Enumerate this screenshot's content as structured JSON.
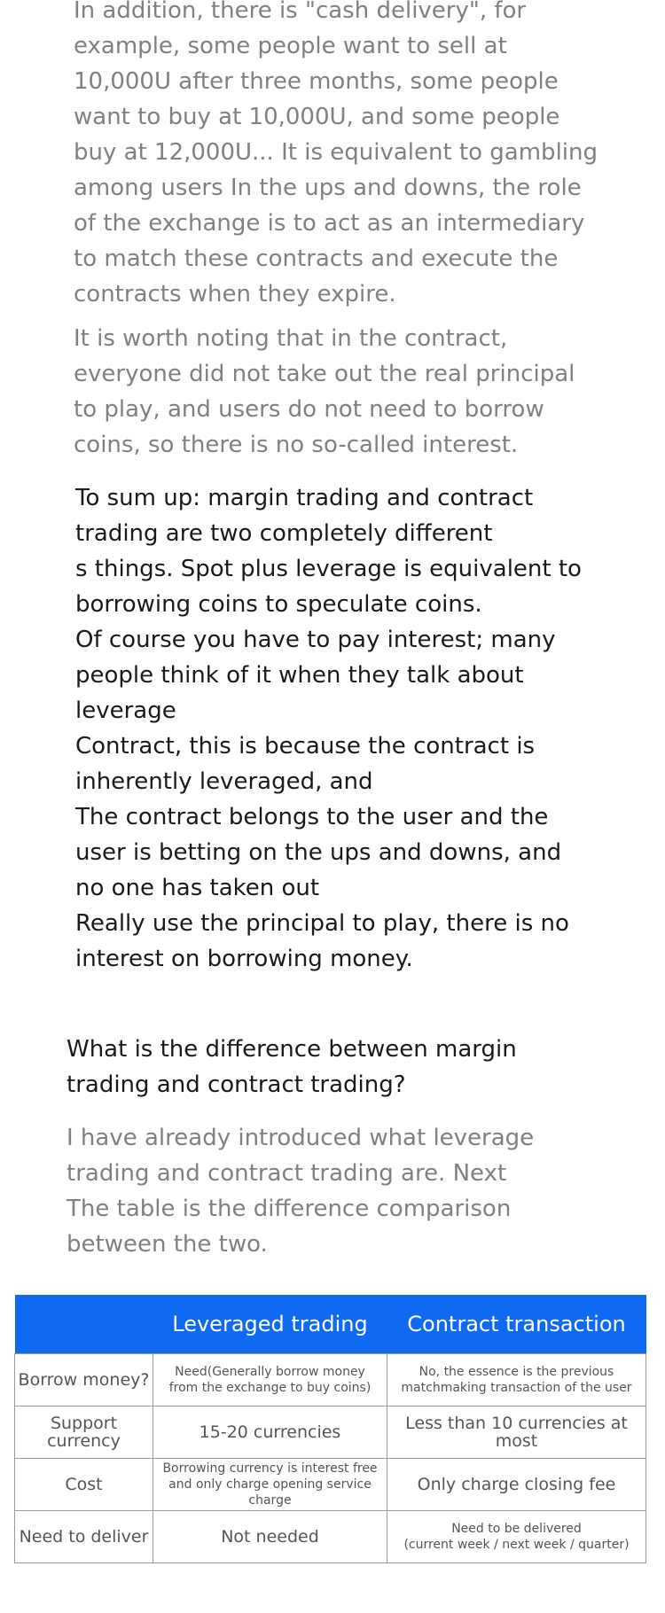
{
  "article": {
    "paragraph_1": "In addition, there is \"cash delivery\", for\nexample, some people want to sell at\n10,000U after three months, some people\nwant to buy at 10,000U, and some people\nbuy at 12,000U... It is equivalent to gambling\namong users In the ups and downs, the role\nof the exchange is to act as an intermediary\nto match these contracts and execute the\ncontracts when they expire.",
    "paragraph_2": "It is worth noting that in the contract,\neveryone did not take out the real principal\nto play, and users do not need to borrow\ncoins, so there is no so-called interest.",
    "summary": "To sum up: margin trading and contract\ntrading are two completely different\ns things. Spot plus leverage is equivalent to\nborrowing coins to speculate coins.\nOf course you have to pay interest; many\npeople think of it when they talk about\nleverage\nContract, this is because the contract is\ninherently leveraged, and\nThe contract belongs to the user and the\nuser is betting on the ups and downs, and\nno one has taken out\nReally use the principal to play, there is no\ninterest on borrowing money.",
    "heading": "What is the difference between margin\ntrading and contract trading?",
    "intro": "I have already introduced what leverage\ntrading and contract trading are. Next\nThe table is the difference comparison\nbetween the two."
  },
  "table": {
    "header_color": "#0f6af3",
    "headers": [
      "",
      "Leveraged trading",
      "Contract transaction"
    ],
    "rows": [
      {
        "label": "Borrow money?",
        "leveraged": "Need(Generally borrow money\nfrom the exchange to buy coins)",
        "contract": "No, the essence is the previous\nmatchmaking transaction of the user"
      },
      {
        "label": "Support currency",
        "leveraged": "15-20 currencies",
        "contract": "Less than 10 currencies at most"
      },
      {
        "label": "Cost",
        "leveraged": "Borrowing currency is interest free\nand only charge opening service charge",
        "contract": "Only charge closing fee"
      },
      {
        "label": "Need to deliver",
        "leveraged": "Not needed",
        "contract": "Need to be delivered\n(current week / next week / quarter)"
      }
    ]
  }
}
